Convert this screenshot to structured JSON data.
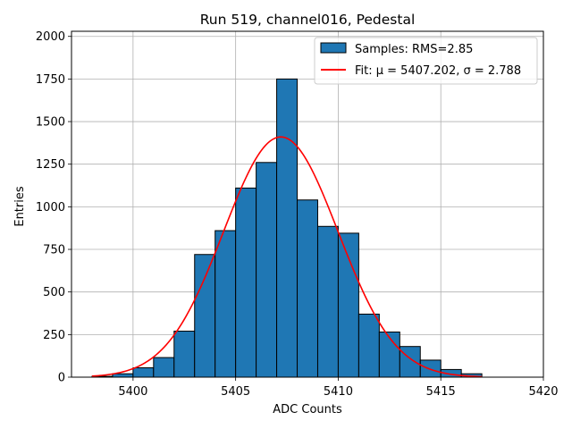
{
  "chart_data": {
    "type": "bar",
    "title": "Run 519, channel016, Pedestal",
    "xlabel": "ADC Counts",
    "ylabel": "Entries",
    "xlim": [
      5397,
      5420
    ],
    "ylim": [
      0,
      2030
    ],
    "xticks": [
      5400,
      5405,
      5410,
      5415,
      5420
    ],
    "yticks": [
      0,
      250,
      500,
      750,
      1000,
      1250,
      1500,
      1750,
      2000
    ],
    "grid": true,
    "legend_position": "top-right",
    "histogram": {
      "name": "Samples: RMS=2.85",
      "color": "#1f77b4",
      "edgecolor": "#000000",
      "bin_width": 1,
      "bin_starts": [
        5398,
        5399,
        5400,
        5401,
        5402,
        5403,
        5404,
        5405,
        5406,
        5407,
        5408,
        5409,
        5410,
        5411,
        5412,
        5413,
        5414,
        5415,
        5416
      ],
      "counts": [
        5,
        20,
        55,
        115,
        270,
        720,
        860,
        1110,
        1260,
        1750,
        1040,
        885,
        845,
        370,
        265,
        180,
        100,
        45,
        20
      ]
    },
    "fit": {
      "name": "Fit: μ = 5407.202, σ = 2.788",
      "color": "#ff0000",
      "mu": 5407.202,
      "sigma": 2.788,
      "amplitude": 1410,
      "x_range": [
        5398,
        5417
      ]
    }
  }
}
